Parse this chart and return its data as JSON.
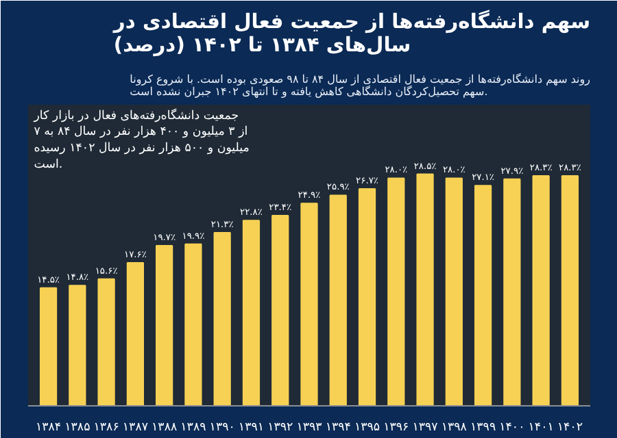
{
  "chart_data": {
    "type": "bar",
    "title": "سهم دانشگاه‌رفته‌ها از جمعیت فعال اقتصادی در سال‌های ۱۳۸۴ تا ۱۴۰۲ (درصد)",
    "subtitle": "روند سهم دانشگاه‌رفته‌ها از جمعیت فعال اقتصادی از سال ۸۴ تا ۹۸ صعودی بوده است. با شروع کرونا سهم تحصیل‌کردگان دانشگاهی کاهش یافته و تا انتهای ۱۴۰۲ جبران نشده است.",
    "annotations": [
      "جمعیت دانشگاه‌رفته‌های فعال در بازار کار از ۳ میلیون و ۴۰۰ هزار نفر در سال ۸۴ به ۷ میلیون و ۵۰۰ هزار نفر در سال ۱۴۰۲ رسیده است."
    ],
    "categories": [
      "۱۳۸۴",
      "۱۳۸۵",
      "۱۳۸۶",
      "۱۳۸۷",
      "۱۳۸۸",
      "۱۳۸۹",
      "۱۳۹۰",
      "۱۳۹۱",
      "۱۳۹۲",
      "۱۳۹۳",
      "۱۳۹۴",
      "۱۳۹۵",
      "۱۳۹۶",
      "۱۳۹۷",
      "۱۳۹۸",
      "۱۳۹۹",
      "۱۴۰۰",
      "۱۴۰۱",
      "۱۴۰۲"
    ],
    "values": [
      14.5,
      14.8,
      15.6,
      17.6,
      19.7,
      19.9,
      21.3,
      22.8,
      23.4,
      24.9,
      25.9,
      26.7,
      28.0,
      28.5,
      28.0,
      27.1,
      27.9,
      28.3,
      28.3
    ],
    "value_labels": [
      "۱۴.۵٪",
      "۱۴.۸٪",
      "۱۵.۶٪",
      "۱۷.۶٪",
      "۱۹.۷٪",
      "۱۹.۹٪",
      "۲۱.۳٪",
      "۲۲.۸٪",
      "۲۳.۴٪",
      "۲۴.۹٪",
      "۲۵.۹٪",
      "۲۶.۷٪",
      "۲۸.۰٪",
      "۲۸.۵٪",
      "۲۸.۰٪",
      "۲۷.۱٪",
      "۲۷.۹٪",
      "۲۸.۳٪",
      "۲۸.۳٪"
    ],
    "color": "#f7d154",
    "grid": false
  }
}
